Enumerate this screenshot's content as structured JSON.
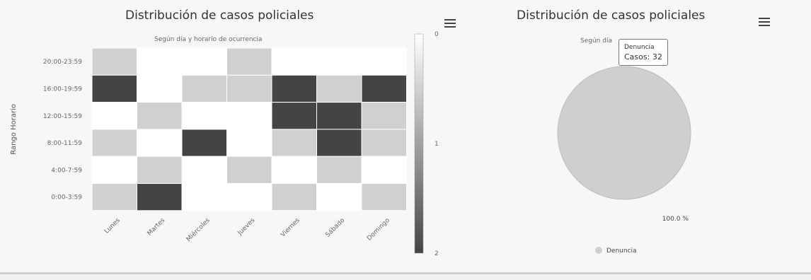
{
  "heatmap": {
    "title": "Distribución de casos policiales",
    "subtitle": "Según día y horario de ocurrencia",
    "menu_icon": "hamburger-menu-icon"
  },
  "pie": {
    "title": "Distribución de casos policiales",
    "subtitle": "Según día",
    "menu_icon": "hamburger-menu-icon",
    "tooltip": {
      "name": "Denuncia",
      "label": "Casos: 32"
    },
    "legend_label": "Denuncia"
  },
  "chart_data": [
    {
      "type": "heatmap",
      "title": "Distribución de casos policiales",
      "subtitle": "Según día y horario de ocurrencia",
      "xlabel": "",
      "ylabel": "Rango Horario",
      "x_categories": [
        "Lunes",
        "Martes",
        "Miércoles",
        "Jueves",
        "Viernes",
        "Sábado",
        "Domingo"
      ],
      "y_categories": [
        "20:00-23:59",
        "16:00-19:59",
        "12:00-15:59",
        "8:00-11:59",
        "4:00-7:59",
        "0:00-3:59"
      ],
      "values": [
        [
          0.5,
          0,
          0,
          0.5,
          0,
          0,
          0
        ],
        [
          2,
          0,
          0.5,
          0.5,
          2,
          0.5,
          2
        ],
        [
          0,
          0.5,
          0,
          0,
          2,
          2,
          0.5
        ],
        [
          0.5,
          0,
          2,
          0,
          0.5,
          2,
          0.5
        ],
        [
          0,
          0.5,
          0,
          0.5,
          0,
          0.5,
          0
        ],
        [
          0.5,
          2,
          0,
          0,
          0.5,
          0,
          0.5
        ]
      ],
      "colorscale": {
        "min": 0,
        "max": 2,
        "ticks": [
          "0",
          "1",
          "2"
        ],
        "min_color": "#ffffff",
        "max_color": "#444444"
      },
      "legend": "right"
    },
    {
      "type": "pie",
      "title": "Distribución de casos policiales",
      "slices": [
        {
          "name": "Denuncia",
          "value": 32,
          "label": "100.0 %",
          "color": "#cfcfcf"
        }
      ],
      "legend": "bottom"
    }
  ]
}
